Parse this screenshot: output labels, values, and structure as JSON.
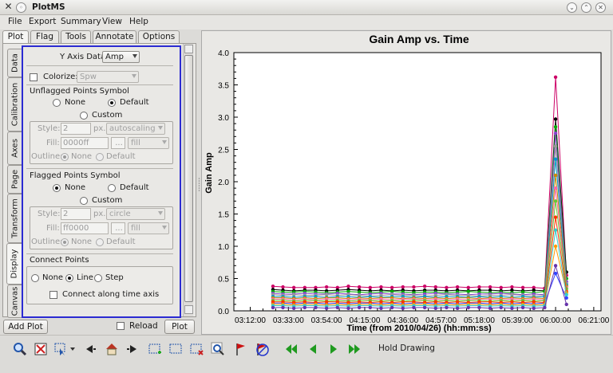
{
  "window": {
    "title": "PlotMS"
  },
  "menu": [
    "File",
    "Export",
    "Summary",
    "View",
    "Help"
  ],
  "tabs": [
    "Plot",
    "Flag",
    "Tools",
    "Annotate",
    "Options"
  ],
  "side_tabs": [
    "Data",
    "Calibration",
    "Axes",
    "Page",
    "Transform",
    "Display",
    "Canvas"
  ],
  "display": {
    "y_axis_label": "Y Axis Data:",
    "y_axis_value": "Amp",
    "colorize_label": "Colorize:",
    "colorize_value": "Spw",
    "unflagged": {
      "title": "Unflagged Points Symbol",
      "opt_none": "None",
      "opt_default": "Default",
      "opt_custom": "Custom",
      "style_label": "Style:",
      "style_value": "2",
      "px": "px.",
      "shape": "autoscaling",
      "fill_label": "Fill:",
      "fill_value": "0000ff",
      "fill_btn": "...",
      "fill_type": "fill",
      "outline_label": "Outline:",
      "outline_none": "None",
      "outline_default": "Default"
    },
    "flagged": {
      "title": "Flagged Points Symbol",
      "opt_none": "None",
      "opt_default": "Default",
      "opt_custom": "Custom",
      "style_label": "Style:",
      "style_value": "2",
      "px": "px.",
      "shape": "circle",
      "fill_label": "Fill:",
      "fill_value": "ff0000",
      "fill_btn": "...",
      "fill_type": "fill",
      "outline_label": "Outline:",
      "outline_none": "None",
      "outline_default": "Default"
    },
    "connect": {
      "title": "Connect Points",
      "opt_none": "None",
      "opt_line": "Line",
      "opt_step": "Step",
      "along_time": "Connect along time axis"
    }
  },
  "buttons": {
    "add_plot": "Add Plot",
    "reload": "Reload",
    "plot": "Plot"
  },
  "toolbar": {
    "hold_drawing": "Hold Drawing",
    "icons": [
      "zoom-icon",
      "fit-icon",
      "select-mode-icon",
      "dropdown-icon",
      "back-icon",
      "home-icon",
      "forward-icon",
      "add-region-icon",
      "region-icon",
      "remove-region-icon",
      "inspect-icon",
      "flag-icon",
      "unflag-icon",
      "first-page-icon",
      "prev-page-icon",
      "next-page-icon",
      "last-page-icon"
    ]
  },
  "colors": {
    "panel_border": "#2b2bd2",
    "toolbar_green": "#1f9a1f"
  },
  "chart_data": {
    "type": "line",
    "title": "Gain Amp vs. Time",
    "xlabel": "Time (from 2010/04/26) (hh:mm:ss)",
    "ylabel": "Gain Amp",
    "xticks": [
      "03:12:00",
      "03:33:00",
      "03:54:00",
      "04:15:00",
      "04:36:00",
      "04:57:00",
      "05:18:00",
      "05:39:00",
      "06:00:00",
      "06:21:00"
    ],
    "yticks": [
      "0.0",
      "0.5",
      "1.0",
      "1.5",
      "2.0",
      "2.5",
      "3.0",
      "3.5",
      "4.0"
    ],
    "xlim_minutes": [
      183,
      385
    ],
    "ylim": [
      0,
      4
    ],
    "x_minutes": [
      204.5,
      210,
      216,
      222,
      228,
      234,
      240,
      246,
      252,
      258,
      264,
      270,
      276,
      282,
      288,
      294,
      300,
      306,
      312,
      318,
      324,
      330,
      336,
      342,
      348,
      354,
      360,
      366
    ],
    "series": [
      {
        "color": "#cc0066",
        "values": [
          0.38,
          0.37,
          0.36,
          0.36,
          0.36,
          0.37,
          0.36,
          0.38,
          0.37,
          0.36,
          0.37,
          0.36,
          0.37,
          0.37,
          0.38,
          0.37,
          0.36,
          0.37,
          0.36,
          0.37,
          0.37,
          0.36,
          0.37,
          0.36,
          0.36,
          0.35,
          3.62,
          0.55
        ]
      },
      {
        "color": "#000000",
        "values": [
          0.33,
          0.32,
          0.31,
          0.32,
          0.32,
          0.31,
          0.32,
          0.33,
          0.32,
          0.31,
          0.32,
          0.31,
          0.32,
          0.31,
          0.32,
          0.32,
          0.31,
          0.32,
          0.31,
          0.32,
          0.32,
          0.31,
          0.32,
          0.31,
          0.32,
          0.31,
          2.97,
          0.6
        ]
      },
      {
        "color": "#00aa00",
        "values": [
          0.3,
          0.29,
          0.29,
          0.3,
          0.29,
          0.28,
          0.29,
          0.3,
          0.29,
          0.28,
          0.29,
          0.3,
          0.29,
          0.28,
          0.29,
          0.29,
          0.28,
          0.29,
          0.3,
          0.29,
          0.28,
          0.29,
          0.28,
          0.29,
          0.28,
          0.3,
          2.85,
          0.5
        ]
      },
      {
        "color": "#8844cc",
        "values": [
          0.27,
          0.26,
          0.26,
          0.27,
          0.26,
          0.26,
          0.27,
          0.26,
          0.25,
          0.26,
          0.27,
          0.26,
          0.26,
          0.25,
          0.26,
          0.27,
          0.26,
          0.26,
          0.25,
          0.26,
          0.26,
          0.27,
          0.26,
          0.25,
          0.26,
          0.25,
          2.75,
          0.45
        ]
      },
      {
        "color": "#999999",
        "values": [
          0.25,
          0.24,
          0.25,
          0.24,
          0.24,
          0.25,
          0.24,
          0.25,
          0.24,
          0.23,
          0.24,
          0.25,
          0.24,
          0.24,
          0.23,
          0.24,
          0.25,
          0.24,
          0.24,
          0.23,
          0.24,
          0.24,
          0.25,
          0.24,
          0.23,
          0.24,
          2.55,
          0.42
        ]
      },
      {
        "color": "#0099cc",
        "values": [
          0.22,
          0.22,
          0.21,
          0.22,
          0.22,
          0.21,
          0.22,
          0.22,
          0.21,
          0.22,
          0.21,
          0.22,
          0.22,
          0.21,
          0.22,
          0.21,
          0.22,
          0.22,
          0.21,
          0.22,
          0.21,
          0.22,
          0.21,
          0.22,
          0.21,
          0.22,
          2.35,
          0.4
        ]
      },
      {
        "color": "#cc8800",
        "values": [
          0.2,
          0.2,
          0.19,
          0.2,
          0.19,
          0.2,
          0.2,
          0.19,
          0.2,
          0.19,
          0.2,
          0.2,
          0.19,
          0.2,
          0.19,
          0.2,
          0.19,
          0.2,
          0.2,
          0.19,
          0.2,
          0.19,
          0.2,
          0.19,
          0.2,
          0.19,
          2.1,
          0.38
        ]
      },
      {
        "color": "#ff66aa",
        "values": [
          0.18,
          0.18,
          0.17,
          0.18,
          0.17,
          0.18,
          0.18,
          0.17,
          0.18,
          0.17,
          0.18,
          0.17,
          0.18,
          0.18,
          0.17,
          0.18,
          0.17,
          0.18,
          0.17,
          0.18,
          0.18,
          0.17,
          0.18,
          0.17,
          0.18,
          0.17,
          1.9,
          0.36
        ]
      },
      {
        "color": "#66cc33",
        "values": [
          0.16,
          0.16,
          0.15,
          0.16,
          0.16,
          0.15,
          0.16,
          0.15,
          0.16,
          0.16,
          0.15,
          0.16,
          0.15,
          0.16,
          0.16,
          0.15,
          0.16,
          0.15,
          0.16,
          0.16,
          0.15,
          0.16,
          0.15,
          0.16,
          0.15,
          0.16,
          1.7,
          0.34
        ]
      },
      {
        "color": "#3344ff",
        "values": [
          0.12,
          0.12,
          0.11,
          0.12,
          0.12,
          0.11,
          0.12,
          0.11,
          0.12,
          0.12,
          0.11,
          0.12,
          0.11,
          0.12,
          0.12,
          0.11,
          0.12,
          0.11,
          0.12,
          0.12,
          0.11,
          0.12,
          0.11,
          0.12,
          0.11,
          0.12,
          0.58,
          0.2
        ]
      },
      {
        "color": "#ff3300",
        "values": [
          0.14,
          0.14,
          0.13,
          0.14,
          0.13,
          0.14,
          0.14,
          0.13,
          0.14,
          0.13,
          0.14,
          0.13,
          0.14,
          0.14,
          0.13,
          0.14,
          0.13,
          0.14,
          0.13,
          0.14,
          0.14,
          0.13,
          0.14,
          0.13,
          0.14,
          0.13,
          1.45,
          0.3
        ]
      },
      {
        "color": "#ff9900",
        "values": [
          0.1,
          0.1,
          0.09,
          0.1,
          0.1,
          0.09,
          0.1,
          0.09,
          0.1,
          0.1,
          0.09,
          0.1,
          0.09,
          0.1,
          0.1,
          0.09,
          0.1,
          0.09,
          0.1,
          0.1,
          0.09,
          0.1,
          0.09,
          0.1,
          0.09,
          0.1,
          1.0,
          0.28
        ]
      },
      {
        "color": "#33cccc",
        "values": [
          0.08,
          0.08,
          0.07,
          0.08,
          0.08,
          0.07,
          0.08,
          0.07,
          0.08,
          0.08,
          0.07,
          0.08,
          0.07,
          0.08,
          0.08,
          0.07,
          0.08,
          0.07,
          0.08,
          0.08,
          0.07,
          0.08,
          0.07,
          0.08,
          0.07,
          0.08,
          1.25,
          0.25
        ]
      },
      {
        "color": "#6633aa",
        "values": [
          0.05,
          0.05,
          0.04,
          0.05,
          0.05,
          0.04,
          0.05,
          0.04,
          0.05,
          0.05,
          0.04,
          0.05,
          0.04,
          0.05,
          0.05,
          0.04,
          0.05,
          0.04,
          0.05,
          0.05,
          0.04,
          0.05,
          0.04,
          0.05,
          0.04,
          0.05,
          0.7,
          0.1
        ]
      }
    ]
  }
}
